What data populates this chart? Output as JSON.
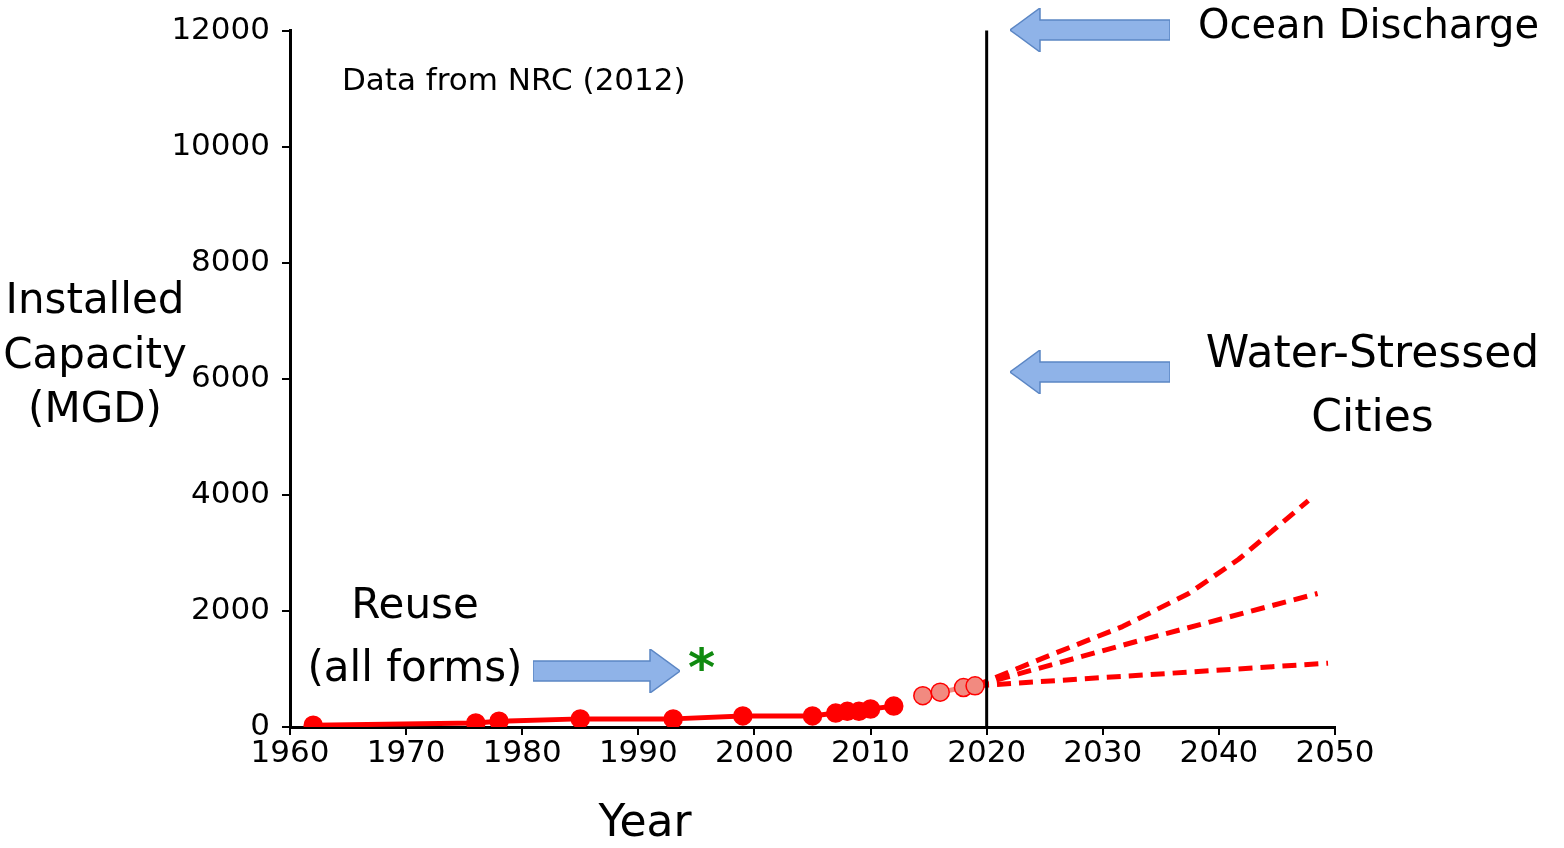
{
  "chart_data": {
    "type": "line",
    "xlabel": "Year",
    "ylabel": "Installed Capacity (MGD)",
    "xlim": [
      1960,
      2050
    ],
    "xticks": [
      1960,
      1970,
      1980,
      1990,
      2000,
      2010,
      2020,
      2030,
      2040,
      2050
    ],
    "ylim": [
      0,
      12000
    ],
    "yticks": [
      0,
      2000,
      4000,
      6000,
      8000,
      10000,
      12000
    ],
    "grid": false,
    "legend": false,
    "series": [
      {
        "color": "#ff0000",
        "marker": "circle",
        "line_style": "solid",
        "x": [
          1962,
          1976,
          1978,
          1985,
          1993,
          1999,
          2005,
          2007,
          2008,
          2009,
          2010,
          2012
        ],
        "values": [
          30,
          70,
          100,
          140,
          140,
          190,
          190,
          240,
          270,
          270,
          310,
          360
        ]
      },
      {
        "color": "#f28a80",
        "marker": "circle",
        "line_style": "dashed",
        "x": [
          2014.5,
          2016,
          2018,
          2019
        ],
        "values": [
          540,
          600,
          680,
          710
        ]
      },
      {
        "color": "#ff0000",
        "marker": "none",
        "line_style": "dashed",
        "x": [
          2019,
          2026,
          2031.7,
          2037.4,
          2041.7,
          2047.7
        ],
        "values": [
          710,
          1280,
          1730,
          2300,
          2890,
          3900
        ]
      },
      {
        "color": "#ff0000",
        "marker": "none",
        "line_style": "dashed",
        "x": [
          2019,
          2033,
          2048.5
        ],
        "values": [
          710,
          1480,
          2300
        ]
      },
      {
        "color": "#ff0000",
        "marker": "none",
        "line_style": "dashed",
        "x": [
          2019,
          2049.4
        ],
        "values": [
          710,
          1100
        ]
      }
    ],
    "ref_lines": [
      {
        "axis": "x",
        "value": 2020,
        "color": "#000000",
        "line_style": "solid"
      }
    ],
    "annotations": [
      "Data from NRC (2012)",
      "Ocean Discharge",
      "Water-Stressed Cities",
      "Reuse\n(all forms)",
      "*"
    ]
  }
}
